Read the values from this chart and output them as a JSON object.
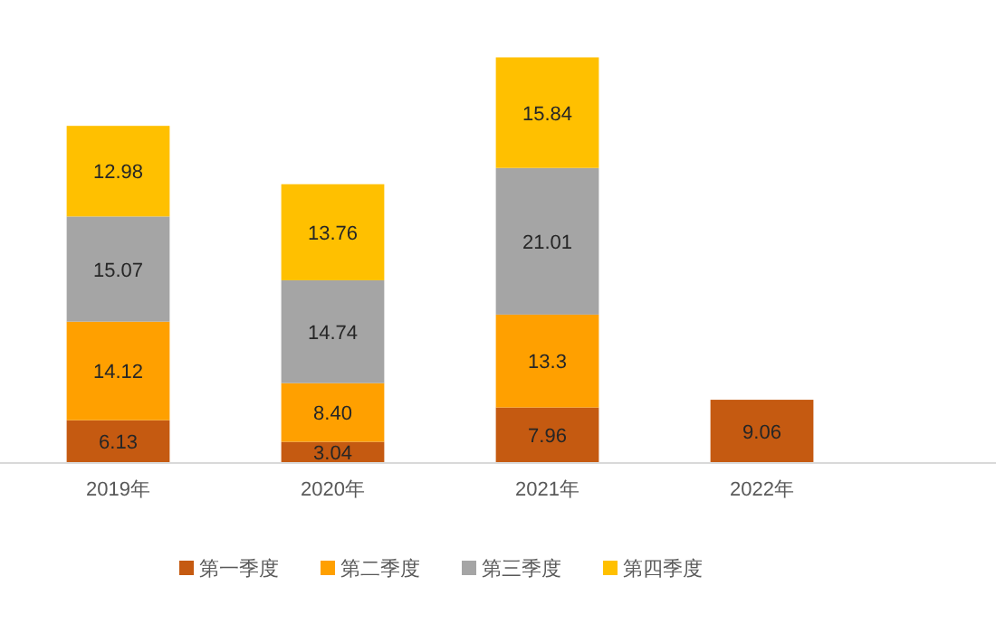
{
  "chart_data": {
    "type": "bar",
    "stacked": true,
    "categories": [
      "2019年",
      "2020年",
      "2021年",
      "2022年"
    ],
    "series": [
      {
        "name": "第一季度",
        "color": "#c55a11",
        "values": [
          6.13,
          3.04,
          7.96,
          9.06
        ],
        "value_labels": [
          "6.13",
          "3.04",
          "7.96",
          "9.06"
        ]
      },
      {
        "name": "第二季度",
        "color": "#ffa000",
        "values": [
          14.12,
          8.4,
          13.3,
          null
        ],
        "value_labels": [
          "14.12",
          "8.40",
          "13.3",
          null
        ]
      },
      {
        "name": "第三季度",
        "color": "#a5a5a5",
        "values": [
          15.07,
          14.74,
          21.01,
          null
        ],
        "value_labels": [
          "15.07",
          "14.74",
          "21.01",
          null
        ]
      },
      {
        "name": "第四季度",
        "color": "#ffc000",
        "values": [
          12.98,
          13.76,
          15.84,
          null
        ],
        "value_labels": [
          "12.98",
          "13.76",
          "15.84",
          null
        ]
      }
    ],
    "tick_labels": "x",
    "legend": "bottom"
  }
}
